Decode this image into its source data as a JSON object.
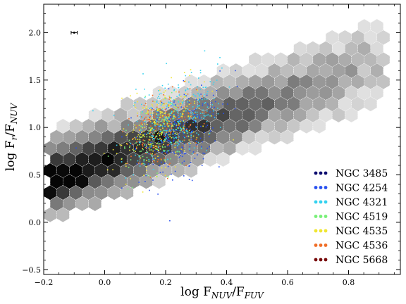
{
  "chart_data": {
    "type": "scatter",
    "xlabel": {
      "base": "log F",
      "main_sub": "NUV",
      "slash": "/F",
      "den_sub": "FUV"
    },
    "ylabel": {
      "base": "log F",
      "main_sub": "r",
      "slash": "/F",
      "den_sub": "NUV"
    },
    "xlim": [
      -0.2,
      0.97
    ],
    "ylim": [
      -0.55,
      2.3
    ],
    "xticks": [
      -0.2,
      0.0,
      0.2,
      0.4,
      0.6,
      0.8
    ],
    "xtick_labels": [
      "−0.2",
      "0.0",
      "0.2",
      "0.4",
      "0.6",
      "0.8"
    ],
    "yticks": [
      -0.5,
      0.0,
      0.5,
      1.0,
      1.5,
      2.0
    ],
    "ytick_labels": [
      "−0.5",
      "0.0",
      "0.5",
      "1.0",
      "1.5",
      "2.0"
    ],
    "grid": false,
    "legend_position": "lower-right",
    "hexbin_background": {
      "colormap": "gray",
      "description_region": "dense band from (-0.15,-0.35) to (0.9,1.7)"
    },
    "error_bar": {
      "x": -0.1,
      "y": 2.0,
      "xerr": 0.01
    },
    "series": [
      {
        "name": "NGC 3485",
        "color": "#0a0a6e",
        "x_center": 0.2,
        "y_center": 1.05,
        "x_spread": 0.05,
        "y_spread": 0.2,
        "n": 0
      },
      {
        "name": "NGC 4254",
        "color": "#2850f0",
        "x_center": 0.24,
        "y_center": 0.95,
        "x_spread": 0.08,
        "y_spread": 0.22,
        "n": 260
      },
      {
        "name": "NGC 4321",
        "color": "#34d2f0",
        "x_center": 0.23,
        "y_center": 1.12,
        "x_spread": 0.07,
        "y_spread": 0.2,
        "n": 320
      },
      {
        "name": "NGC 4519",
        "color": "#78f078",
        "x_center": 0.16,
        "y_center": 0.85,
        "x_spread": 0.05,
        "y_spread": 0.18,
        "n": 120
      },
      {
        "name": "NGC 4535",
        "color": "#f0e632",
        "x_center": 0.18,
        "y_center": 1.03,
        "x_spread": 0.07,
        "y_spread": 0.2,
        "n": 280
      },
      {
        "name": "NGC 4536",
        "color": "#f06e28",
        "x_center": 0.2,
        "y_center": 1.05,
        "x_spread": 0.06,
        "y_spread": 0.22,
        "n": 160
      },
      {
        "name": "NGC 5668",
        "color": "#780a0a",
        "x_center": 0.2,
        "y_center": 1.0,
        "x_spread": 0.05,
        "y_spread": 0.2,
        "n": 0
      }
    ]
  }
}
